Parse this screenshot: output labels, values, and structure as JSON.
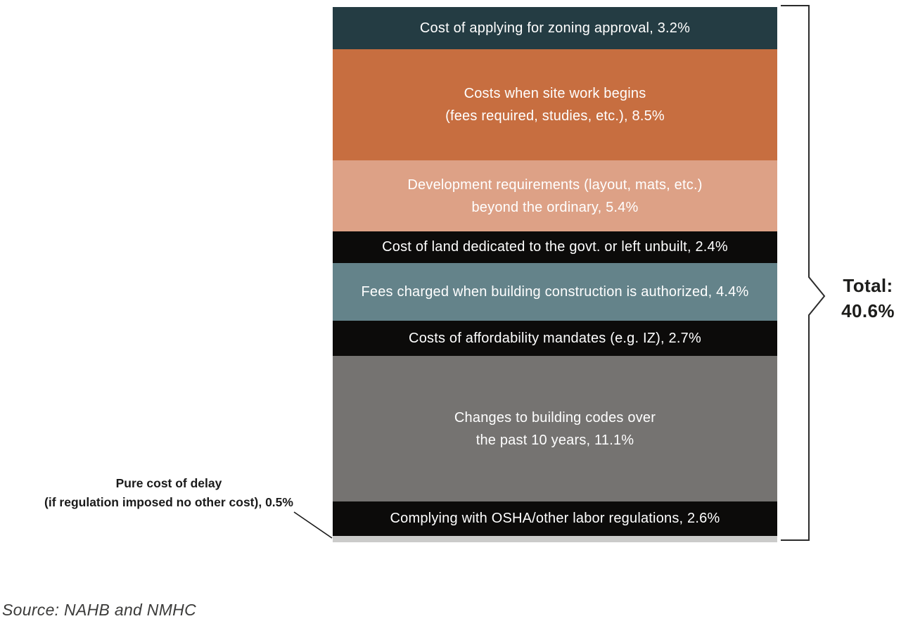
{
  "chart_data": {
    "type": "bar",
    "subtype": "stacked-vertical-single-bar",
    "title": "",
    "unit": "%",
    "total": {
      "label": "Total:",
      "value": "40.6%"
    },
    "segments": [
      {
        "label": "Cost of applying for zoning approval",
        "value": 3.2,
        "lines": [
          "Cost of applying for zoning approval, 3.2%"
        ],
        "color": "#243c43",
        "text_color": "#ffffff"
      },
      {
        "label": "Costs when site work begins (fees required, studies, etc.)",
        "value": 8.5,
        "lines": [
          "Costs when site work begins",
          "(fees required, studies, etc.), 8.5%"
        ],
        "color": "#c76e40",
        "text_color": "#ffffff"
      },
      {
        "label": "Development requirements (layout, mats, etc.) beyond the ordinary",
        "value": 5.4,
        "lines": [
          "Development requirements (layout, mats, etc.)",
          "beyond the ordinary, 5.4%"
        ],
        "color": "#dda186",
        "text_color": "#ffffff"
      },
      {
        "label": "Cost of land dedicated to the govt. or left unbuilt",
        "value": 2.4,
        "lines": [
          "Cost of land dedicated to the govt. or left unbuilt, 2.4%"
        ],
        "color": "#0c0b0a",
        "text_color": "#ffffff"
      },
      {
        "label": "Fees charged when building construction is authorized",
        "value": 4.4,
        "lines": [
          "Fees charged when building construction is authorized, 4.4%"
        ],
        "color": "#64838a",
        "text_color": "#ffffff"
      },
      {
        "label": "Costs of affordability mandates (e.g. IZ)",
        "value": 2.7,
        "lines": [
          "Costs of affordability mandates (e.g. IZ), 2.7%"
        ],
        "color": "#0c0b0a",
        "text_color": "#ffffff"
      },
      {
        "label": "Changes to building codes over the past 10 years",
        "value": 11.1,
        "lines": [
          "Changes to building codes over",
          "the past 10 years, 11.1%"
        ],
        "color": "#757371",
        "text_color": "#ffffff"
      },
      {
        "label": "Complying with OSHA/other labor regulations",
        "value": 2.6,
        "lines": [
          "Complying with OSHA/other labor regulations, 2.6%"
        ],
        "color": "#0c0b0a",
        "text_color": "#ffffff"
      },
      {
        "label": "Pure cost of delay (if regulation imposed no other cost)",
        "value": 0.5,
        "lines": [],
        "color": "#cbcbca",
        "text_color": "#1a1a1a"
      }
    ],
    "annotation": {
      "line1": "Pure cost of delay",
      "line2": "(if regulation imposed no other cost), 0.5%"
    },
    "source": "Source: NAHB and NMHC",
    "colors": {
      "background": "#ffffff",
      "bracket": "#2b2b2b",
      "leader_line": "#1a1a1a",
      "total_text": "#1d1d1b",
      "annotation_text": "#1a1a1a",
      "source_text": "#3b3b3a"
    }
  }
}
